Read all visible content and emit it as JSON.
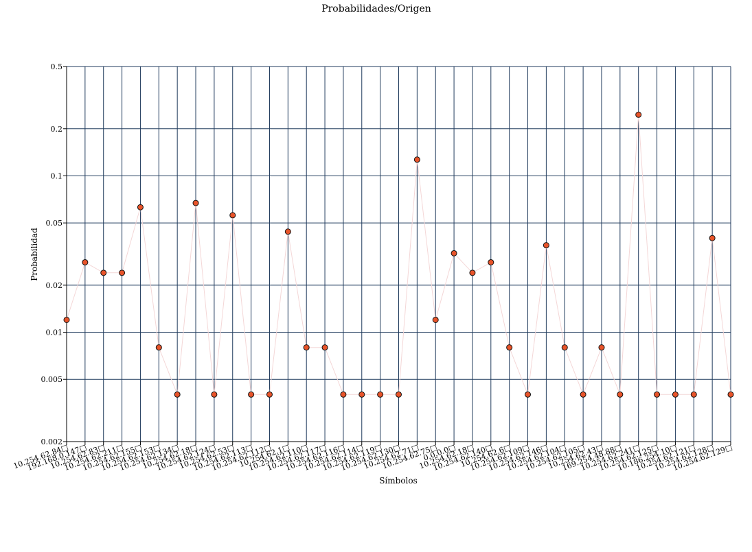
{
  "chart_data": {
    "type": "scatter",
    "title": "Probabilidades/Origen",
    "xlabel": "Símbolos",
    "ylabel": "Probabilidad",
    "y_scale": "log",
    "ylim": [
      0.002,
      0.5
    ],
    "y_ticks": [
      0.002,
      0.005,
      0.01,
      0.02,
      0.05,
      0.1,
      0.2,
      0.5
    ],
    "y_tick_labels": [
      "0.002",
      "0.005",
      "0.01",
      "0.02",
      "0.05",
      "0.1",
      "0.2",
      "0.5"
    ],
    "grid": true,
    "connecting_line": true,
    "colors": {
      "grid": "#1f3a5c",
      "marker_fill": "#e8542a",
      "marker_stroke": "#111111",
      "line": "#f4d7d7"
    },
    "categories": [
      "10.254.62.84□",
      "192.168.0.147□",
      "10.254.62.83□",
      "10.254.62.211□",
      "10.254.62.155□",
      "10.254.62.153□",
      "10.254.62.134□",
      "10.254.62.18□",
      "10.254.62.124□",
      "10.254.62.53□",
      "10.254.62.113□",
      "10.254.62.112□",
      "10.254.62.1□",
      "10.254.62.110□",
      "10.254.62.117□",
      "10.254.62.116□",
      "10.254.62.114□",
      "10.254.62.119□",
      "10.254.62.130□",
      "10.254.62.71□",
      "10.254.62.75□",
      "0.0.0.0□",
      "10.254.62.18□",
      "10.254.62.140□",
      "10.254.62.6□",
      "10.254.62.109□",
      "10.254.62.146□",
      "10.254.62.104□",
      "10.254.62.105□",
      "10.254.62.43□",
      "169.254.48.88□",
      "10.254.62.241□",
      "10.254.62.125□",
      "10.186.254.10□",
      "10.254.62.121□",
      "10.254.62.128□",
      "10.254.62.129□"
    ],
    "values": [
      0.012,
      0.028,
      0.024,
      0.024,
      0.063,
      0.008,
      0.004,
      0.067,
      0.004,
      0.056,
      0.004,
      0.004,
      0.044,
      0.008,
      0.008,
      0.004,
      0.004,
      0.004,
      0.004,
      0.127,
      0.012,
      0.032,
      0.024,
      0.028,
      0.008,
      0.004,
      0.036,
      0.008,
      0.004,
      0.008,
      0.004,
      0.246,
      0.004,
      0.004,
      0.004,
      0.04,
      0.004
    ]
  }
}
